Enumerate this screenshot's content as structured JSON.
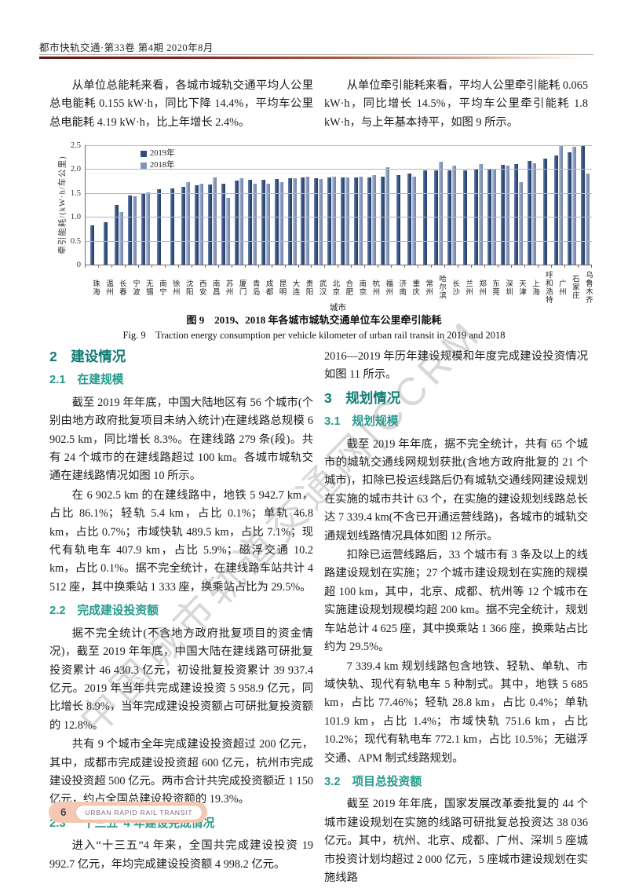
{
  "page": {
    "header": "都市快轨交通·第33卷 第4期 2020年8月",
    "watermark": "中国城市轨道交通网|CCRM",
    "footer": {
      "page_number": "6",
      "journal_en": "URBAN RAPID RAIL TRANSIT"
    }
  },
  "intro": {
    "left": "从单位总能耗来看，各城市城轨交通平均人公里总电能耗 0.155 kW·h，同比下降 14.4%，平均车公里总电能耗 4.19 kW·h，比上年增长 2.4%。",
    "right": "从单位牵引能耗来看，平均人公里牵引能耗 0.065 kW·h，同比增长 14.5%，平均车公里牵引能耗 1.8 kW·h，与上年基本持平，如图 9 所示。"
  },
  "figure": {
    "caption_zh": "图 9　2019、2018 年各城市城轨交通单位车公里牵引能耗",
    "caption_en": "Fig. 9　Traction energy consumption per vehicle kilometer of urban rail transit in 2019 and 2018"
  },
  "chart_data": {
    "type": "bar",
    "title": "",
    "xlabel": "城市",
    "ylabel": "牵引能耗/(kW·h/车公里)",
    "ylim": [
      0,
      2.5
    ],
    "yticks": [
      "0",
      "0.5",
      "1.0",
      "1.5",
      "2.0",
      "2.5"
    ],
    "grid": true,
    "legend_position": "top-left",
    "categories": [
      "珠海",
      "温州",
      "长春",
      "宁波",
      "无锡",
      "南宁",
      "徐州",
      "沈阳",
      "西安",
      "南昌",
      "苏州",
      "厦门",
      "青岛",
      "成都",
      "昆明",
      "大连",
      "贵阳",
      "武汉",
      "北京",
      "合肥",
      "南京",
      "杭州",
      "福州",
      "济南",
      "重庆",
      "常州",
      "哈尔滨",
      "长沙",
      "兰州",
      "郑州",
      "东莞",
      "深圳",
      "天津",
      "上海",
      "呼和浩特",
      "广州",
      "石家庄",
      "乌鲁木齐"
    ],
    "series": [
      {
        "name": "2019年",
        "color": "#2e4d7c",
        "values": [
          0.82,
          0.89,
          1.25,
          1.45,
          1.5,
          1.58,
          1.6,
          1.63,
          1.66,
          1.68,
          1.69,
          1.76,
          1.77,
          1.78,
          1.8,
          1.81,
          1.82,
          1.81,
          1.82,
          1.82,
          1.83,
          1.82,
          1.84,
          1.88,
          1.9,
          1.97,
          1.97,
          1.97,
          1.97,
          1.99,
          2.0,
          2.09,
          2.1,
          2.17,
          2.22,
          2.28,
          2.36,
          2.5
        ]
      },
      {
        "name": "2018年",
        "color": "#8294be",
        "values": [
          null,
          null,
          1.1,
          1.43,
          1.52,
          null,
          null,
          1.72,
          1.7,
          1.82,
          1.4,
          1.81,
          1.7,
          1.7,
          1.72,
          1.81,
          1.85,
          1.79,
          1.84,
          1.82,
          1.84,
          1.87,
          2.04,
          null,
          1.84,
          null,
          2.15,
          2.07,
          null,
          2.11,
          1.99,
          2.08,
          1.72,
          2.12,
          null,
          2.5,
          2.47,
          1.9
        ]
      }
    ]
  },
  "sections": {
    "s2": {
      "title": "2　建设情况"
    },
    "s21": {
      "title": "2.1　在建规模",
      "p1": "截至 2019 年年底，中国大陆地区有 56 个城市(个别由地方政府批复项目未纳入统计)在建线路总规模 6 902.5 km，同比增长 8.3%。在建线路 279 条(段)。共有 24 个城市的在建线路超过 100 km。各城市城轨交通在建线路情况如图 10 所示。",
      "p2": "在 6 902.5 km 的在建线路中，地铁 5 942.7 km，占比 86.1%；轻轨 5.4 km，占比 0.1%；单轨 46.8 km，占比 0.7%；市域快轨 489.5 km，占比 7.1%；现代有轨电车 407.9 km，占比 5.9%；磁浮交通 10.2 km，占比 0.1%。据不完全统计，在建线路车站共计 4 512 座，其中换乘站 1 333 座，换乘站占比为 29.5%。"
    },
    "s22": {
      "title": "2.2　完成建设投资额",
      "p1": "据不完全统计(不含地方政府批复项目的资金情况)，截至 2019 年年底，中国大陆在建线路可研批复投资累计 46 430.3 亿元，初设批复投资累计 39 937.4 亿元。2019 年当年共完成建设投资 5 958.9 亿元，同比增长 8.9%，当年完成建设投资额占可研批复投资额的 12.8%。",
      "p2": "共有 9 个城市全年完成建设投资超过 200 亿元，其中，成都市完成建设投资超 600 亿元，杭州市完成建设投资超 500 亿元。两市合计共完成投资额近 1 150 亿元，约占全国总建设投资额的 19.3%。"
    },
    "s23": {
      "title": "2.3　“十三五”4 年建设完成情况",
      "p1": "进入“十三五”4 年来，全国共完成建设投资 19 992.7 亿元，年均完成建设投资额 4 998.2 亿元。"
    },
    "cont": {
      "p0": "2016—2019 年历年建设规模和年度完成建设投资情况如图 11 所示。"
    },
    "s3": {
      "title": "3　规划情况"
    },
    "s31": {
      "title": "3.1　规划规模",
      "p1": "截至 2019 年年底，据不完全统计，共有 65 个城市的城轨交通线网规划获批(含地方政府批复的 21 个城市)，扣除已投运线路后仍有城轨交通线网建设规划在实施的城市共计 63 个，在实施的建设规划线路总长达 7 339.4 km(不含已开通运营线路)，各城市的城轨交通规划线路情况具体如图 12 所示。",
      "p2": "扣除已运营线路后，33 个城市有 3 条及以上的线路建设规划在实施；27 个城市建设规划在实施的规模超 100 km，其中，北京、成都、杭州等 12 个城市在实施建设规划规模均超 200 km。据不完全统计，规划车站总计 4 625 座，其中换乘站 1 366 座，换乘站占比约为 29.5%。",
      "p3": "7 339.4 km 规划线路包含地铁、轻轨、单轨、市域快轨、现代有轨电车 5 种制式。其中，地铁 5 685 km，占比 77.46%；轻轨 28.8 km，占比 0.4%；单轨 101.9 km，占比 1.4%；市域快轨 751.6 km，占比 10.2%；现代有轨电车 772.1 km，占比 10.5%；无磁浮交通、APM 制式线路规划。"
    },
    "s32": {
      "title": "3.2　项目总投资额",
      "p1": "截至 2019 年年底，国家发展改革委批复的 44 个城市建设规划在实施的线路可研批复总投资达 38 036 亿元。其中，杭州、北京、成都、广州、深圳 5 座城市投资计划均超过 2 000 亿元，5 座城市建设规划在实施线路"
    }
  }
}
